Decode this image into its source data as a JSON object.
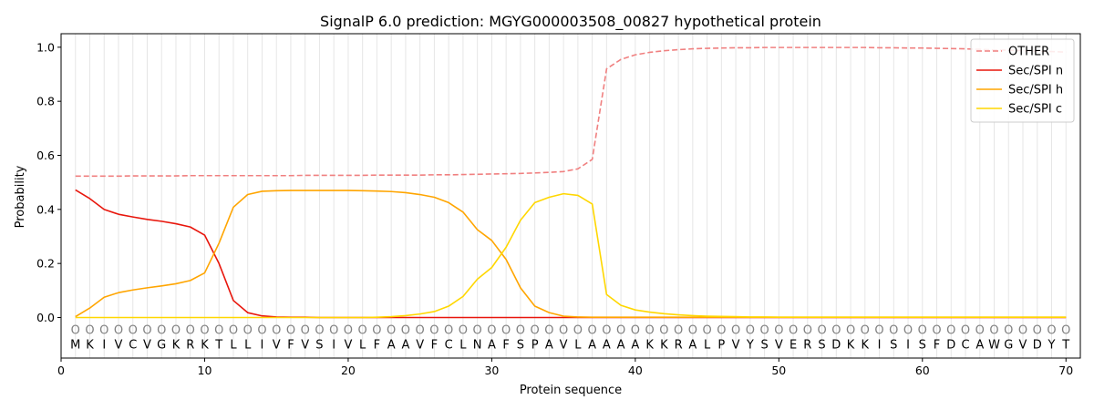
{
  "chart_data": {
    "type": "line",
    "title": "SignalP 6.0 prediction: MGYG000003508_00827 hypothetical protein",
    "xlabel": "Protein sequence",
    "ylabel": "Probability",
    "xlim": [
      0,
      71
    ],
    "ylim": [
      -0.15,
      1.05
    ],
    "x_ticks": [
      0,
      10,
      20,
      30,
      40,
      50,
      60,
      70
    ],
    "y_ticks": [
      0.0,
      0.2,
      0.4,
      0.6,
      0.8,
      1.0
    ],
    "x_tick_labels": [
      "0",
      "10",
      "20",
      "30",
      "40",
      "50",
      "60",
      "70"
    ],
    "y_tick_labels": [
      "0.0",
      "0.2",
      "0.4",
      "0.6",
      "0.8",
      "1.0"
    ],
    "grid": "vertical lines at each residue",
    "legend_position": "top-right",
    "sequence": [
      "M",
      "K",
      "I",
      "V",
      "C",
      "V",
      "G",
      "K",
      "R",
      "K",
      "T",
      "L",
      "L",
      "I",
      "V",
      "F",
      "V",
      "S",
      "I",
      "V",
      "L",
      "F",
      "A",
      "A",
      "V",
      "F",
      "C",
      "L",
      "N",
      "A",
      "F",
      "S",
      "P",
      "A",
      "V",
      "L",
      "A",
      "A",
      "A",
      "A",
      "K",
      "K",
      "R",
      "A",
      "L",
      "P",
      "V",
      "Y",
      "S",
      "V",
      "E",
      "R",
      "S",
      "D",
      "K",
      "K",
      "I",
      "S",
      "I",
      "S",
      "F",
      "D",
      "C",
      "A",
      "W",
      "G",
      "V",
      "D",
      "Y",
      "T"
    ],
    "marker_label": "O",
    "series": [
      {
        "name": "OTHER",
        "color": "#f08080",
        "style": "dashed",
        "values": [
          0.523,
          0.523,
          0.523,
          0.523,
          0.524,
          0.524,
          0.524,
          0.524,
          0.525,
          0.525,
          0.525,
          0.525,
          0.525,
          0.525,
          0.525,
          0.525,
          0.526,
          0.526,
          0.526,
          0.526,
          0.526,
          0.527,
          0.527,
          0.527,
          0.527,
          0.528,
          0.528,
          0.529,
          0.53,
          0.531,
          0.532,
          0.533,
          0.535,
          0.537,
          0.54,
          0.55,
          0.585,
          0.92,
          0.955,
          0.972,
          0.981,
          0.987,
          0.991,
          0.994,
          0.996,
          0.997,
          0.998,
          0.998,
          0.999,
          0.999,
          0.999,
          0.999,
          0.999,
          0.999,
          0.999,
          0.999,
          0.998,
          0.998,
          0.997,
          0.997,
          0.996,
          0.995,
          0.994,
          0.992,
          0.99,
          0.989,
          0.987,
          0.985,
          0.984,
          0.982
        ]
      },
      {
        "name": "Sec/SPI n",
        "color": "#e8160c",
        "style": "solid",
        "values": [
          0.472,
          0.44,
          0.4,
          0.382,
          0.372,
          0.363,
          0.356,
          0.347,
          0.335,
          0.305,
          0.2,
          0.063,
          0.018,
          0.006,
          0.002,
          0.001,
          0.001,
          0,
          0,
          0,
          0,
          0,
          0,
          0,
          0,
          0,
          0,
          0,
          0,
          0,
          0,
          0,
          0,
          0,
          0,
          0,
          0,
          0,
          0,
          0,
          0,
          0,
          0,
          0,
          0,
          0,
          0,
          0,
          0,
          0,
          0,
          0,
          0,
          0,
          0,
          0,
          0,
          0,
          0,
          0,
          0,
          0,
          0,
          0,
          0,
          0,
          0,
          0,
          0,
          0
        ]
      },
      {
        "name": "Sec/SPI h",
        "color": "#ffa500",
        "style": "solid",
        "values": [
          0.003,
          0.035,
          0.075,
          0.092,
          0.102,
          0.11,
          0.117,
          0.125,
          0.137,
          0.165,
          0.275,
          0.408,
          0.455,
          0.467,
          0.469,
          0.47,
          0.47,
          0.47,
          0.47,
          0.47,
          0.469,
          0.468,
          0.466,
          0.462,
          0.455,
          0.445,
          0.425,
          0.39,
          0.325,
          0.285,
          0.215,
          0.11,
          0.042,
          0.018,
          0.005,
          0.002,
          0.001,
          0.001,
          0.001,
          0.001,
          0.001,
          0.001,
          0.001,
          0.001,
          0.001,
          0.001,
          0.001,
          0.001,
          0.001,
          0.001,
          0.001,
          0.001,
          0.001,
          0.001,
          0.001,
          0.001,
          0.001,
          0.001,
          0.001,
          0.001,
          0.001,
          0.001,
          0.001,
          0.001,
          0.001,
          0.001,
          0.001,
          0.001,
          0.001,
          0.001
        ]
      },
      {
        "name": "Sec/SPI c",
        "color": "#ffd700",
        "style": "solid",
        "values": [
          0,
          0,
          0,
          0,
          0,
          0,
          0,
          0,
          0,
          0,
          0,
          0,
          0,
          0,
          0,
          0,
          0,
          0,
          0,
          0,
          0,
          0.001,
          0.003,
          0.007,
          0.013,
          0.022,
          0.042,
          0.078,
          0.142,
          0.185,
          0.26,
          0.36,
          0.425,
          0.445,
          0.458,
          0.452,
          0.42,
          0.085,
          0.045,
          0.028,
          0.02,
          0.014,
          0.01,
          0.007,
          0.005,
          0.004,
          0.003,
          0.002,
          0.002,
          0.001,
          0.001,
          0.001,
          0.001,
          0.001,
          0.001,
          0.001,
          0.001,
          0.001,
          0.001,
          0.001,
          0.001,
          0.001,
          0.001,
          0.001,
          0.001,
          0.001,
          0.001,
          0.001,
          0.001,
          0.001
        ]
      }
    ]
  }
}
